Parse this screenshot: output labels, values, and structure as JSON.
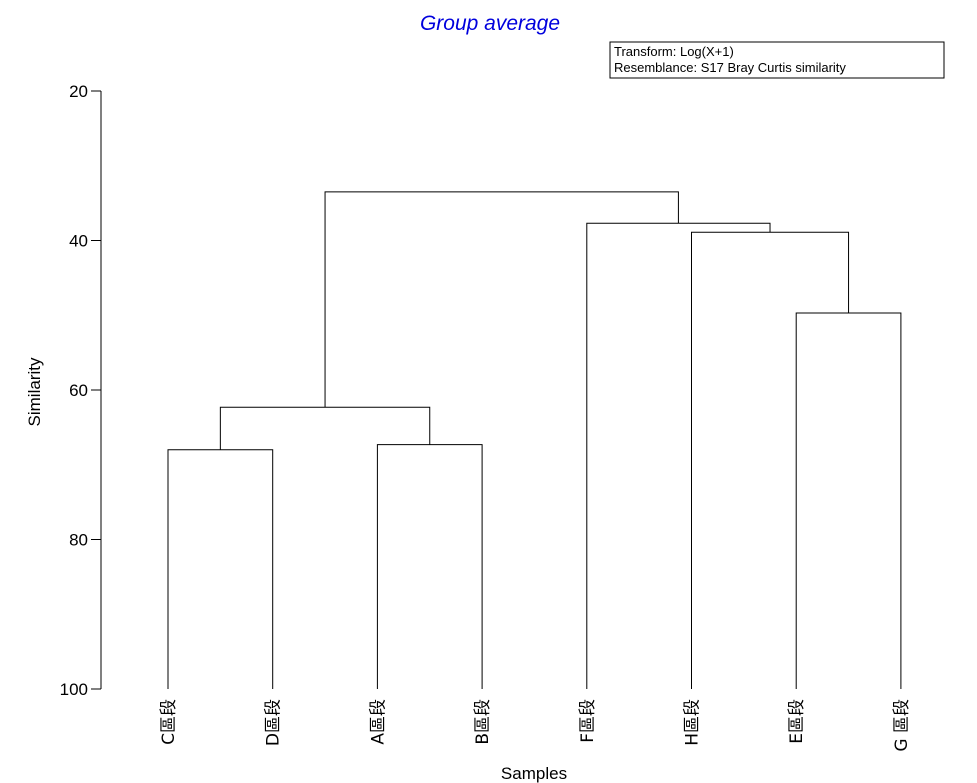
{
  "chart_data": {
    "type": "dendrogram",
    "title": "Group average",
    "xlabel": "Samples",
    "ylabel": "Similarity",
    "ylim": [
      20,
      100
    ],
    "y_inverted": true,
    "yticks": [
      20,
      40,
      60,
      80,
      100
    ],
    "info_box": {
      "lines": [
        "Transform: Log(X+1)",
        "Resemblance: S17 Bray Curtis similarity"
      ],
      "placement": "top-right"
    },
    "leaves": [
      "C區段",
      "D區段",
      "A區段",
      "B區段",
      "F區段",
      "H區段",
      "E區段",
      "G 區段"
    ],
    "merges": [
      {
        "left": "C區段",
        "right": "D區段",
        "similarity": 68.0
      },
      {
        "left": "A區段",
        "right": "B區段",
        "similarity": 67.3
      },
      {
        "left": "CD",
        "right": "AB",
        "similarity": 62.3
      },
      {
        "left": "E區段",
        "right": "G 區段",
        "similarity": 49.7
      },
      {
        "left": "H區段",
        "right": "EG",
        "similarity": 38.9
      },
      {
        "left": "F區段",
        "right": "HEG",
        "similarity": 37.7
      },
      {
        "left": "CDAB",
        "right": "FHEG",
        "similarity": 33.5
      }
    ],
    "grid": false
  },
  "colors": {
    "title": "#0000dd",
    "lines": "#000000",
    "background": "#ffffff"
  }
}
